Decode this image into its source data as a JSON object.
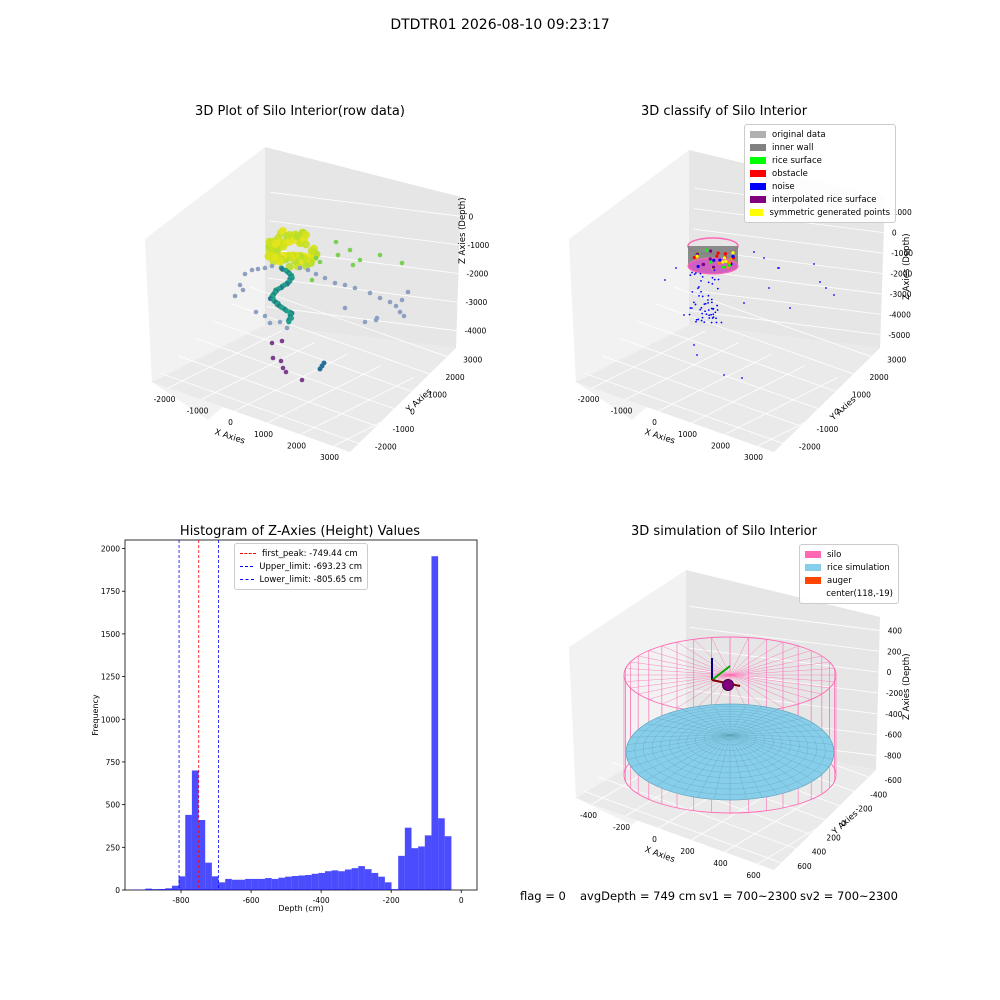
{
  "figure": {
    "suptitle": "DTDTR01 2026-08-10 09:23:17",
    "bottom_text": {
      "flag": "flag = 0",
      "avg_depth": "avgDepth = 749 cm",
      "sv1": "sv1 = 700~2300",
      "sv2": "sv2 = 700~2300"
    }
  },
  "chart_data": [
    {
      "type": "scatter",
      "projection": "3d",
      "title": "3D Plot of Silo Interior(row data)",
      "xlabel": "X Axies",
      "ylabel": "Y Axies",
      "zlabel": "Z Axies (Depth)",
      "xticks": [
        "-2000",
        "-1000",
        "0",
        "1000",
        "2000",
        "3000"
      ],
      "yticks": [
        "-2000",
        "-1000",
        "0",
        "1000",
        "2000",
        "3000"
      ],
      "zticks": [
        "0",
        "-1000",
        "-2000",
        "-3000",
        "-4000"
      ],
      "xlim": [
        -2500,
        3500
      ],
      "ylim": [
        -2500,
        3500
      ],
      "zlim": [
        -4500,
        200
      ],
      "colormap": "viridis (by depth)",
      "grid": true
    },
    {
      "type": "scatter",
      "projection": "3d",
      "title": "3D classify of Silo Interior",
      "xlabel": "X Axies",
      "ylabel": "Y Axies",
      "zlabel": "Z Axies (Depth)",
      "xticks": [
        "-2000",
        "-1000",
        "0",
        "1000",
        "2000",
        "3000"
      ],
      "yticks": [
        "-2000",
        "-1000",
        "0",
        "1000",
        "2000",
        "3000"
      ],
      "zticks": [
        "1000",
        "0",
        "-1000",
        "-2000",
        "-3000",
        "-4000",
        "-5000"
      ],
      "legend_position": "top-right",
      "legend": [
        {
          "label": "original data",
          "color": "#b0b0b0"
        },
        {
          "label": "inner wall",
          "color": "#808080"
        },
        {
          "label": "rice surface",
          "color": "#00ff00"
        },
        {
          "label": "obstacle",
          "color": "#ff0000"
        },
        {
          "label": "noise",
          "color": "#0000ff"
        },
        {
          "label": "interpolated rice surface",
          "color": "#800080"
        },
        {
          "label": "symmetric generated points",
          "color": "#ffff00"
        }
      ],
      "grid": true
    },
    {
      "type": "bar",
      "title": "Histogram of Z-Axies (Height) Values",
      "xlabel": "Depth (cm)",
      "ylabel": "Frequency",
      "xlim": [
        -960,
        45
      ],
      "ylim": [
        0,
        2050
      ],
      "xticks": [
        -800,
        -600,
        -400,
        -200,
        0
      ],
      "yticks": [
        0,
        250,
        500,
        750,
        1000,
        1250,
        1500,
        1750,
        2000
      ],
      "bin_width": 19,
      "bin_left_edges": [
        -940,
        -921,
        -902,
        -883,
        -864,
        -845,
        -826,
        -807,
        -788,
        -769,
        -750,
        -731,
        -712,
        -693,
        -674,
        -655,
        -636,
        -617,
        -598,
        -579,
        -560,
        -541,
        -522,
        -503,
        -484,
        -465,
        -446,
        -427,
        -408,
        -389,
        -370,
        -351,
        -332,
        -313,
        -294,
        -275,
        -256,
        -237,
        -218,
        -199,
        -180,
        -161,
        -142,
        -123,
        -104,
        -85,
        -66,
        -47,
        -28
      ],
      "values": [
        2,
        2,
        8,
        5,
        6,
        10,
        25,
        80,
        440,
        700,
        410,
        160,
        80,
        45,
        65,
        60,
        60,
        65,
        65,
        65,
        70,
        65,
        72,
        78,
        82,
        85,
        88,
        95,
        100,
        110,
        115,
        110,
        120,
        128,
        140,
        122,
        100,
        78,
        45,
        5,
        200,
        365,
        245,
        255,
        320,
        1955,
        420,
        315,
        0
      ],
      "bar_color": "#0000ff",
      "bar_alpha": 0.7,
      "vlines": [
        {
          "label": "first_peak: -749.44 cm",
          "x": -749.44,
          "color": "#ff0000"
        },
        {
          "label": "Upper_limit: -693.23 cm",
          "x": -693.23,
          "color": "#0000ff"
        },
        {
          "label": "Lower_limit: -805.65 cm",
          "x": -805.65,
          "color": "#0000ff"
        }
      ],
      "legend_position": "top-center"
    },
    {
      "type": "surface",
      "projection": "3d",
      "title": "3D simulation of Silo Interior",
      "xlabel": "X Axies",
      "ylabel": "Y Axies",
      "zlabel": "Z Axies (Depth)",
      "xticks": [
        "-400",
        "-200",
        "0",
        "200",
        "400",
        "600"
      ],
      "yticks": [
        "600",
        "400",
        "200",
        "0",
        "-200",
        "-400",
        "-600"
      ],
      "zticks": [
        "400",
        "200",
        "0",
        "-200",
        "-400",
        "-600",
        "-800"
      ],
      "legend_position": "top-right",
      "legend": [
        {
          "label": "silo",
          "color": "#ff69b4"
        },
        {
          "label": "rice simulation",
          "color": "#87ceeb"
        },
        {
          "label": "auger",
          "color": "#ff4500"
        },
        {
          "label": "center(118,-19)",
          "color": ""
        }
      ],
      "grid": true
    }
  ]
}
